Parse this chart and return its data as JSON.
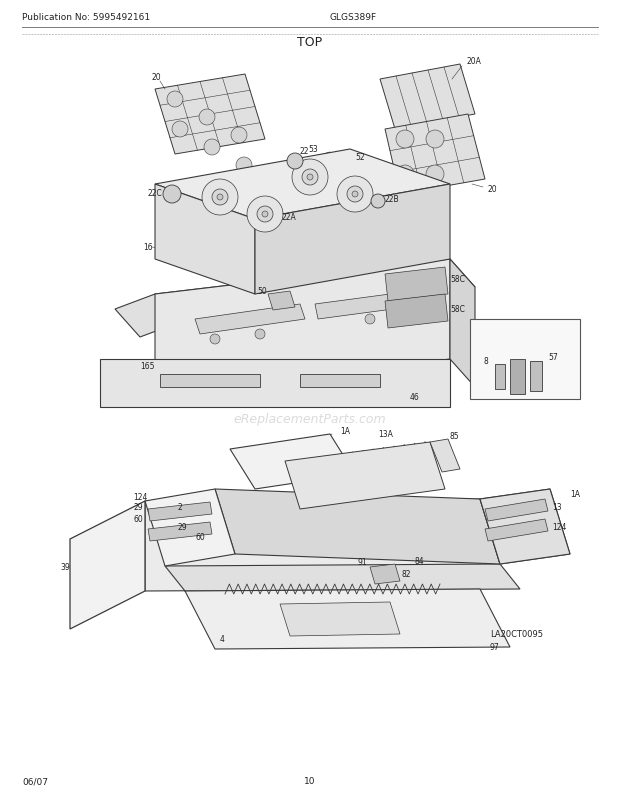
{
  "pub_no": "Publication No: 5995492161",
  "model": "GLGS389F",
  "title": "TOP",
  "date": "06/07",
  "page": "10",
  "watermark": "eReplacementParts.com",
  "bg_color": "#ffffff",
  "line_color": "#3a3a3a",
  "fill_light": "#f2f2f2",
  "fill_mid": "#e0e0e0",
  "fill_dark": "#c8c8c8",
  "watermark_color": "#cccccc",
  "footer_ref": "LA20CT0095"
}
